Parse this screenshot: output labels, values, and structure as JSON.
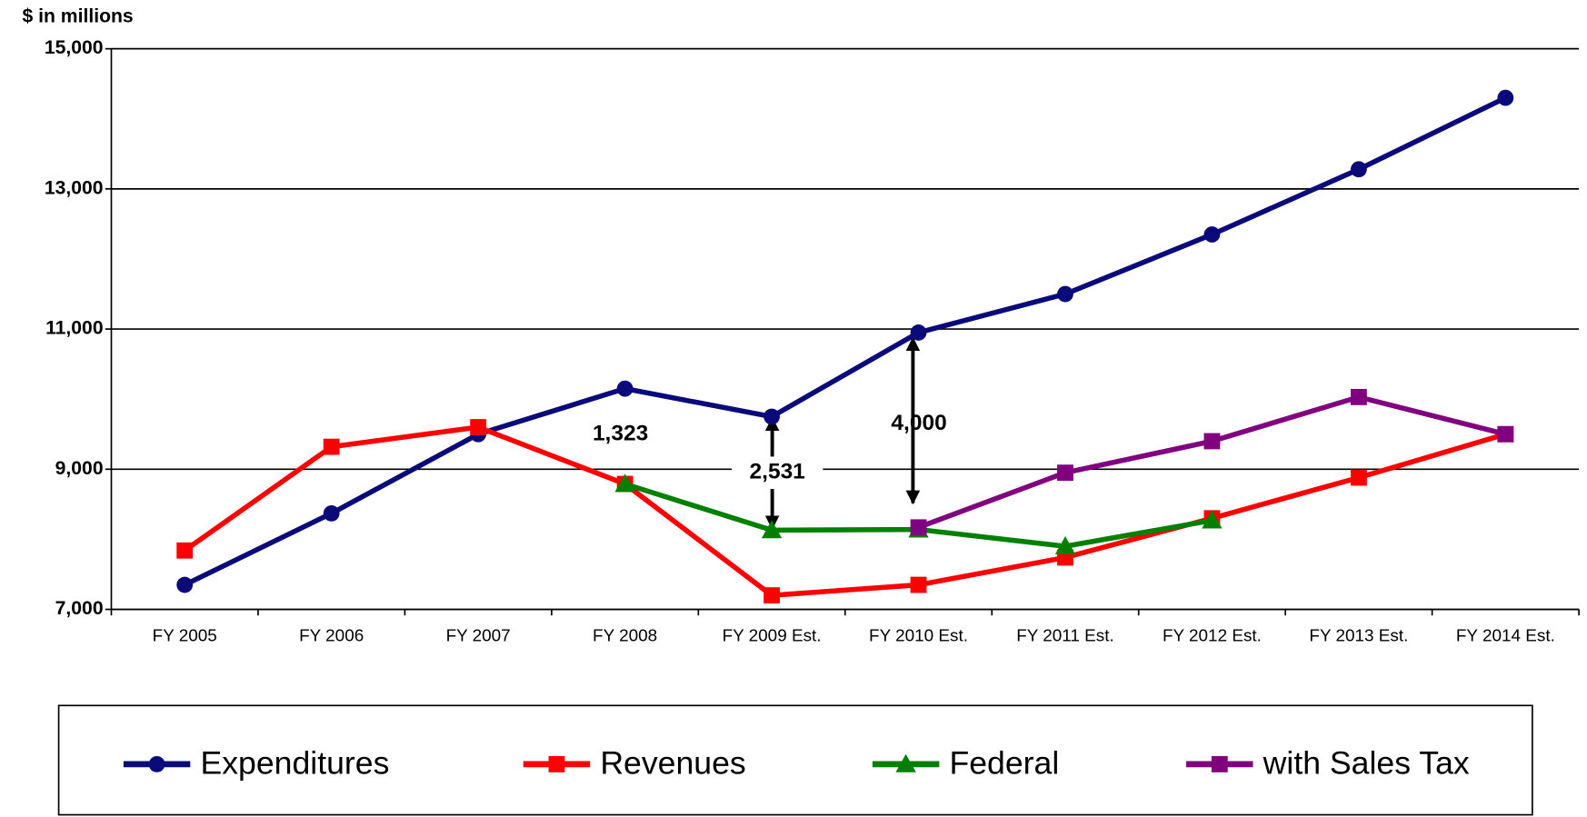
{
  "chart_data": {
    "type": "line",
    "y_label": "$ in millions",
    "categories": [
      "FY 2005",
      "FY 2006",
      "FY 2007",
      "FY 2008",
      "FY 2009 Est.",
      "FY 2010 Est.",
      "FY 2011 Est.",
      "FY 2012 Est.",
      "FY 2013 Est.",
      "FY 2014 Est."
    ],
    "series": [
      {
        "name": "Expenditures",
        "color": "#0a0a7a",
        "marker": "circle",
        "values": [
          7350,
          8370,
          9500,
          10150,
          9750,
          10950,
          11500,
          12350,
          13280,
          14300
        ]
      },
      {
        "name": "Revenues",
        "color": "#ff0000",
        "marker": "square",
        "values": [
          7840,
          9320,
          9600,
          8790,
          7200,
          7350,
          7740,
          8300,
          8880,
          9500
        ]
      },
      {
        "name": "Federal",
        "color": "#008000",
        "marker": "triangle",
        "values": [
          null,
          null,
          null,
          8790,
          8130,
          8140,
          7900,
          8270,
          null,
          null
        ]
      },
      {
        "name": "with Sales Tax",
        "color": "#800080",
        "marker": "square",
        "values": [
          null,
          null,
          null,
          null,
          null,
          8170,
          8950,
          9400,
          10030,
          9500
        ]
      }
    ],
    "annotations": [
      "1,323",
      "2,531",
      "4,000"
    ],
    "ylim": [
      7000,
      15000
    ],
    "yticks": [
      {
        "value": 7000,
        "label": "7,000"
      },
      {
        "value": 9000,
        "label": "9,000"
      },
      {
        "value": 11000,
        "label": "11,000"
      },
      {
        "value": 13000,
        "label": "13,000"
      },
      {
        "value": 15000,
        "label": "15,000"
      }
    ],
    "grid": true,
    "legend": "bottom"
  }
}
